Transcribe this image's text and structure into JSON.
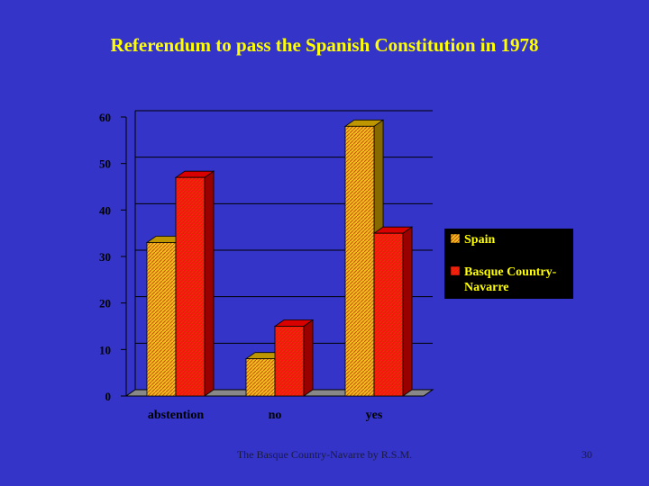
{
  "slide": {
    "title": "Referendum to pass the Spanish Constitution in 1978",
    "footer": "The Basque Country-Navarre by R.S.M.",
    "page_number": "30"
  },
  "chart_data": {
    "type": "bar",
    "title": "Referendum to pass the Spanish Constitution in 1978",
    "categories": [
      "abstention",
      "no",
      "yes"
    ],
    "series": [
      {
        "name": "Spain",
        "values": [
          33,
          8,
          58
        ],
        "color": "#e0b000"
      },
      {
        "name": "Basque Country-Navarre",
        "values": [
          47,
          15,
          35
        ],
        "color": "#ff0000"
      }
    ],
    "ylim": [
      0,
      60
    ],
    "yticks": [
      0,
      10,
      20,
      30,
      40,
      50,
      60
    ],
    "grid": true,
    "legend_position": "right",
    "colors": {
      "background": "#3434c8",
      "axis_text": "#000000",
      "legend_bg": "#000000",
      "legend_text": "#ffff00",
      "title_text": "#ffff00"
    }
  }
}
